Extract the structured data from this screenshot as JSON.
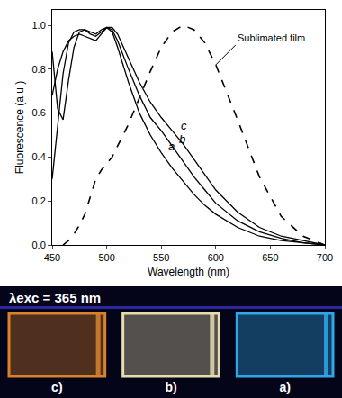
{
  "chart_data": {
    "type": "line",
    "x_label": "Wavelength (nm)",
    "y_label": "Fluorescence (a.u.)",
    "xlim": [
      450,
      700
    ],
    "xticks": [
      450,
      500,
      550,
      600,
      650,
      700
    ],
    "ylim": [
      0,
      1.07
    ],
    "yticks": [
      {
        "value": 0,
        "label": "0.0"
      },
      0.2,
      0.4,
      0.6,
      0.8,
      {
        "value": 1,
        "label": "1.0"
      }
    ],
    "grid": false,
    "x": [
      450,
      455,
      460,
      465,
      470,
      475,
      480,
      485,
      490,
      495,
      500,
      505,
      510,
      520,
      530,
      540,
      550,
      560,
      570,
      580,
      590,
      600,
      620,
      640,
      660,
      680,
      700
    ],
    "series": [
      {
        "name": "a",
        "color": "#000000",
        "line_style": "solid",
        "values": [
          0.3,
          0.55,
          0.78,
          0.92,
          0.97,
          0.98,
          0.98,
          0.96,
          0.95,
          0.97,
          0.99,
          0.97,
          0.9,
          0.74,
          0.6,
          0.5,
          0.42,
          0.35,
          0.29,
          0.23,
          0.18,
          0.14,
          0.08,
          0.04,
          0.02,
          0.01,
          0.0
        ]
      },
      {
        "name": "b",
        "color": "#000000",
        "line_style": "solid",
        "values": [
          0.88,
          0.62,
          0.57,
          0.75,
          0.9,
          0.97,
          0.98,
          0.97,
          0.96,
          0.98,
          0.99,
          0.98,
          0.93,
          0.8,
          0.68,
          0.58,
          0.52,
          0.45,
          0.38,
          0.31,
          0.25,
          0.19,
          0.11,
          0.06,
          0.03,
          0.01,
          0.0
        ]
      },
      {
        "name": "c",
        "color": "#000000",
        "line_style": "solid",
        "values": [
          0.68,
          0.8,
          0.88,
          0.93,
          0.95,
          0.96,
          0.95,
          0.94,
          0.93,
          0.96,
          0.99,
          0.99,
          0.96,
          0.85,
          0.74,
          0.65,
          0.58,
          0.52,
          0.46,
          0.39,
          0.32,
          0.25,
          0.15,
          0.08,
          0.04,
          0.02,
          0.0
        ]
      },
      {
        "name": "Sublimated film",
        "color": "#000000",
        "line_style": "dash",
        "values": [
          null,
          null,
          0.0,
          0.02,
          0.05,
          0.09,
          0.14,
          0.22,
          0.3,
          0.34,
          0.37,
          0.4,
          0.45,
          0.55,
          0.67,
          0.79,
          0.9,
          0.97,
          1.0,
          0.98,
          0.92,
          0.82,
          0.57,
          0.31,
          0.13,
          0.04,
          0.0
        ]
      }
    ]
  },
  "photo": {
    "caption": "λexc = 365 nm",
    "samples": [
      {
        "label": "c)",
        "color": "#d9822b"
      },
      {
        "label": "b)",
        "color": "#e6dcae"
      },
      {
        "label": "a)",
        "color": "#2fa8e8"
      }
    ]
  }
}
